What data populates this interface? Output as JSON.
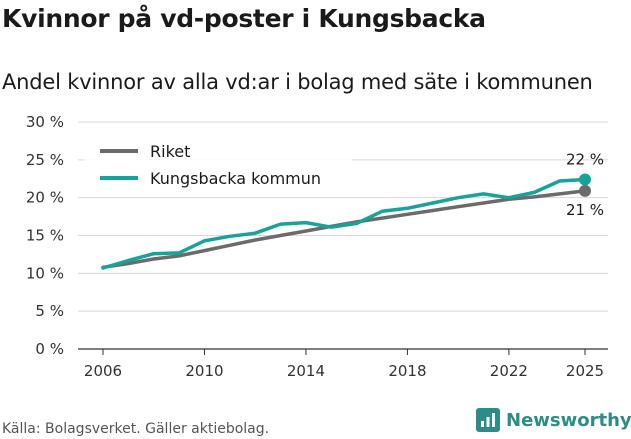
{
  "title": "Kvinnor på vd-poster i Kungsbacka",
  "subtitle": "Andel kvinnor av alla vd:ar i bolag med säte i kommunen",
  "source": "Källa: Bolagsverket. Gäller aktiebolag.",
  "brand": "Newsworthy",
  "colors": {
    "riket": "#6b6b6b",
    "kommun": "#15a39a",
    "brand": "#2c8c88",
    "grid": "#d8d8d8"
  },
  "chart_data": {
    "type": "line",
    "title": "Kvinnor på vd-poster i Kungsbacka",
    "xlabel": "",
    "ylabel": "",
    "ylim": [
      0,
      30
    ],
    "xlim": [
      2006,
      2025
    ],
    "y_ticks": [
      0,
      5,
      10,
      15,
      20,
      25,
      30
    ],
    "y_tick_labels": [
      "0 %",
      "5 %",
      "10 %",
      "15 %",
      "20 %",
      "25 %",
      "30 %"
    ],
    "x_ticks": [
      2006,
      2010,
      2014,
      2018,
      2022,
      2025
    ],
    "x_tick_labels": [
      "2006",
      "2010",
      "2014",
      "2018",
      "2022",
      "2025"
    ],
    "x": [
      2006,
      2007,
      2008,
      2009,
      2010,
      2011,
      2012,
      2013,
      2014,
      2015,
      2016,
      2017,
      2018,
      2019,
      2020,
      2021,
      2022,
      2023,
      2024,
      2025
    ],
    "series": [
      {
        "name": "Riket",
        "key": "riket",
        "values": [
          10.8,
          11.3,
          11.9,
          12.3,
          13.0,
          13.7,
          14.4,
          15.0,
          15.6,
          16.2,
          16.8,
          17.3,
          17.8,
          18.3,
          18.8,
          19.3,
          19.8,
          20.1,
          20.5,
          20.9
        ],
        "end_label": "21 %"
      },
      {
        "name": "Kungsbacka kommun",
        "key": "kommun",
        "values": [
          10.7,
          11.7,
          12.6,
          12.7,
          14.3,
          14.9,
          15.3,
          16.5,
          16.7,
          16.1,
          16.6,
          18.2,
          18.6,
          19.3,
          20.0,
          20.5,
          20.0,
          20.7,
          22.2,
          22.4
        ],
        "end_label": "22 %"
      }
    ],
    "legend_position": "top-left",
    "grid": true
  }
}
